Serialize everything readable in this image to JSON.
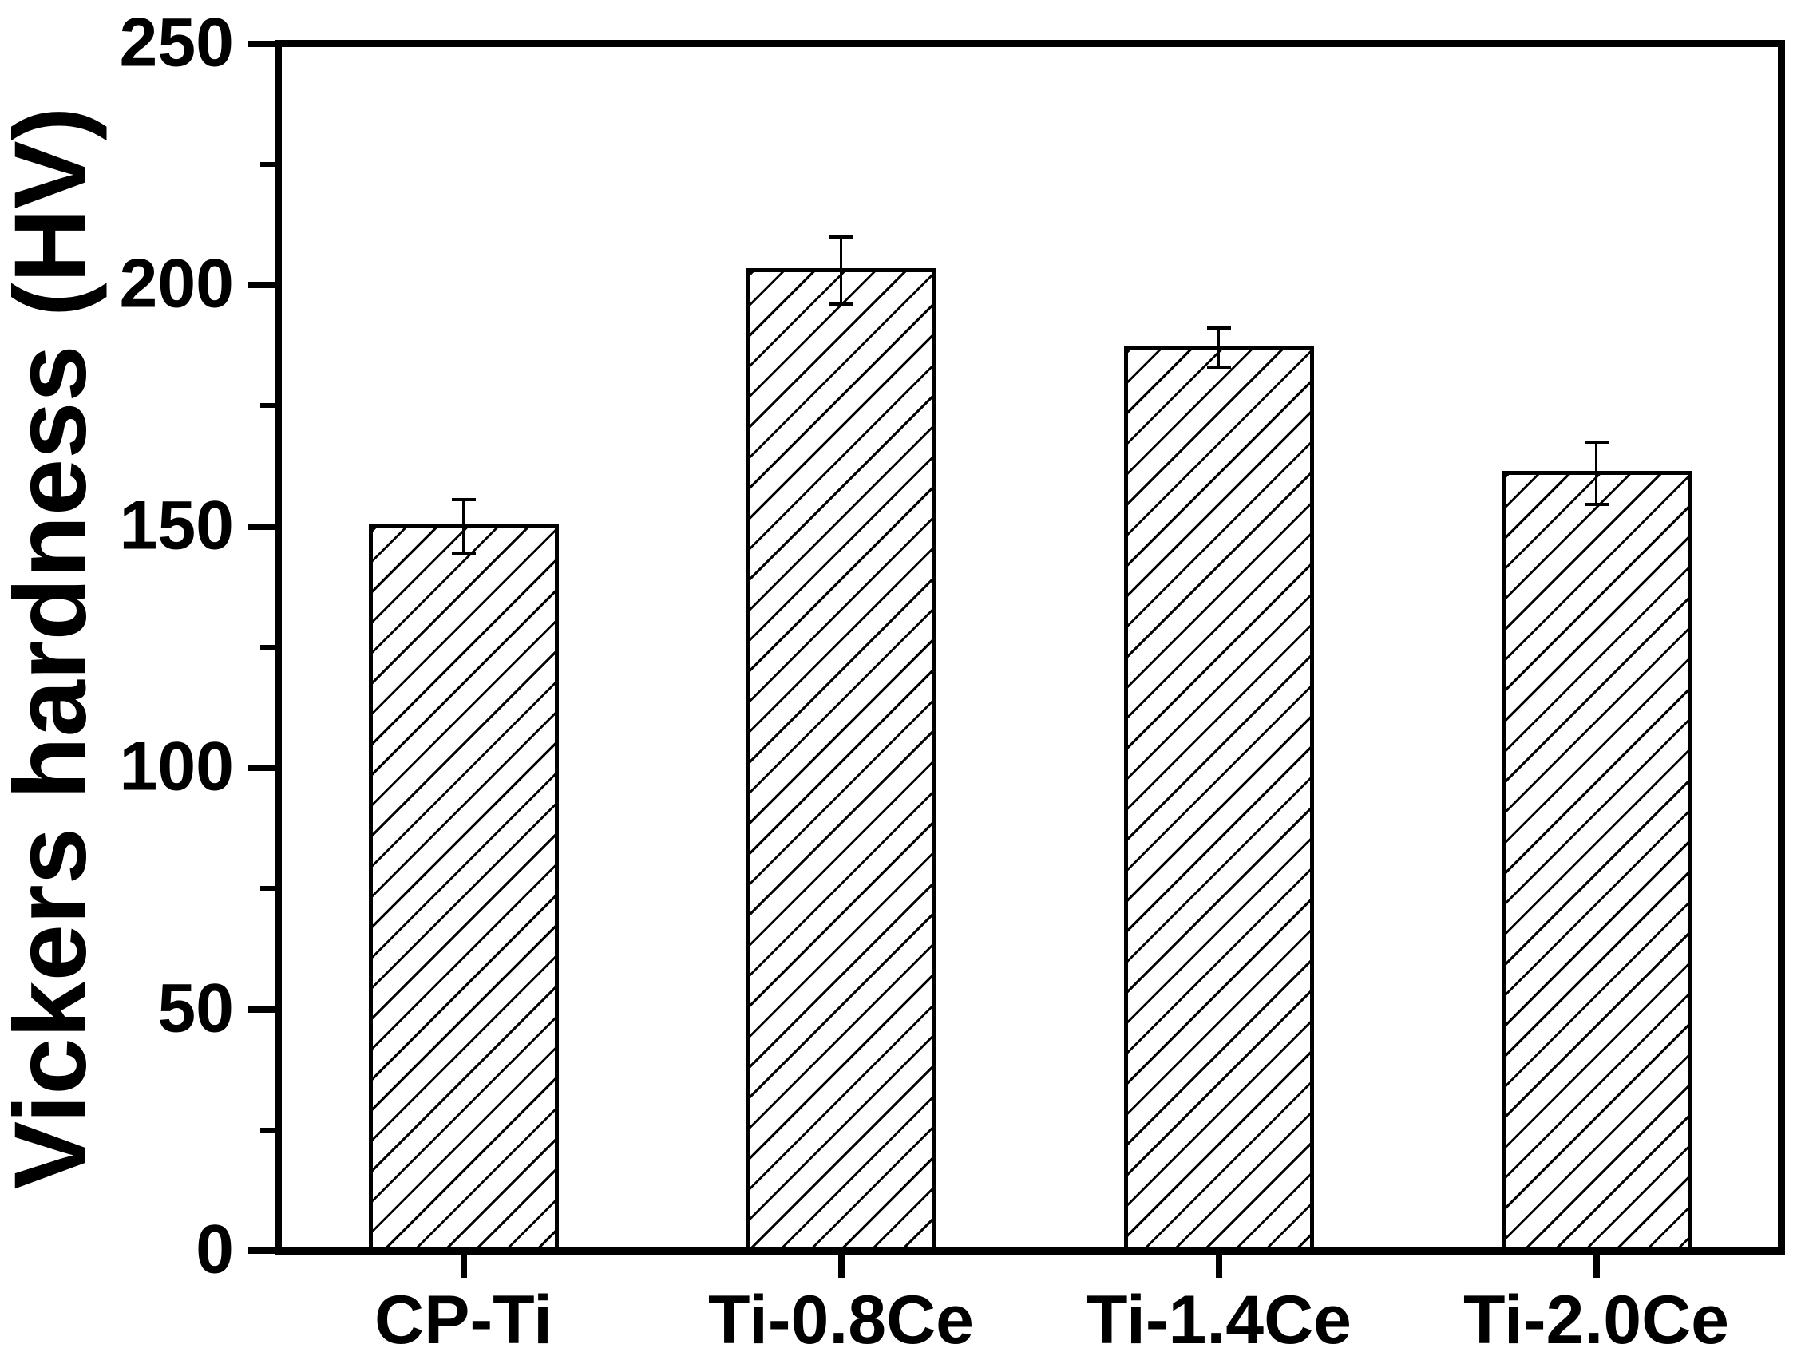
{
  "figure": {
    "background_color": "#ffffff",
    "foreground_color": "#000000"
  },
  "chart_data": {
    "type": "bar",
    "title": "",
    "xlabel": "",
    "ylabel": "Vickers hardness (HV)",
    "categories": [
      "CP-Ti",
      "Ti-0.8Ce",
      "Ti-1.4Ce",
      "Ti-2.0Ce"
    ],
    "values": [
      150,
      203,
      187,
      161
    ],
    "errors": [
      5.5,
      7,
      4,
      6.5
    ],
    "ylim": [
      0,
      250
    ],
    "y_major_ticks": [
      0,
      50,
      100,
      150,
      200,
      250
    ],
    "y_minor_ticks": [
      25,
      75,
      125,
      175,
      225
    ],
    "grid": false,
    "legend": "none",
    "bar_fill_color": "#ffffff",
    "bar_edge_color": "#000000",
    "hatch_style": "forward-diagonal",
    "error_bar_color": "#000000"
  }
}
